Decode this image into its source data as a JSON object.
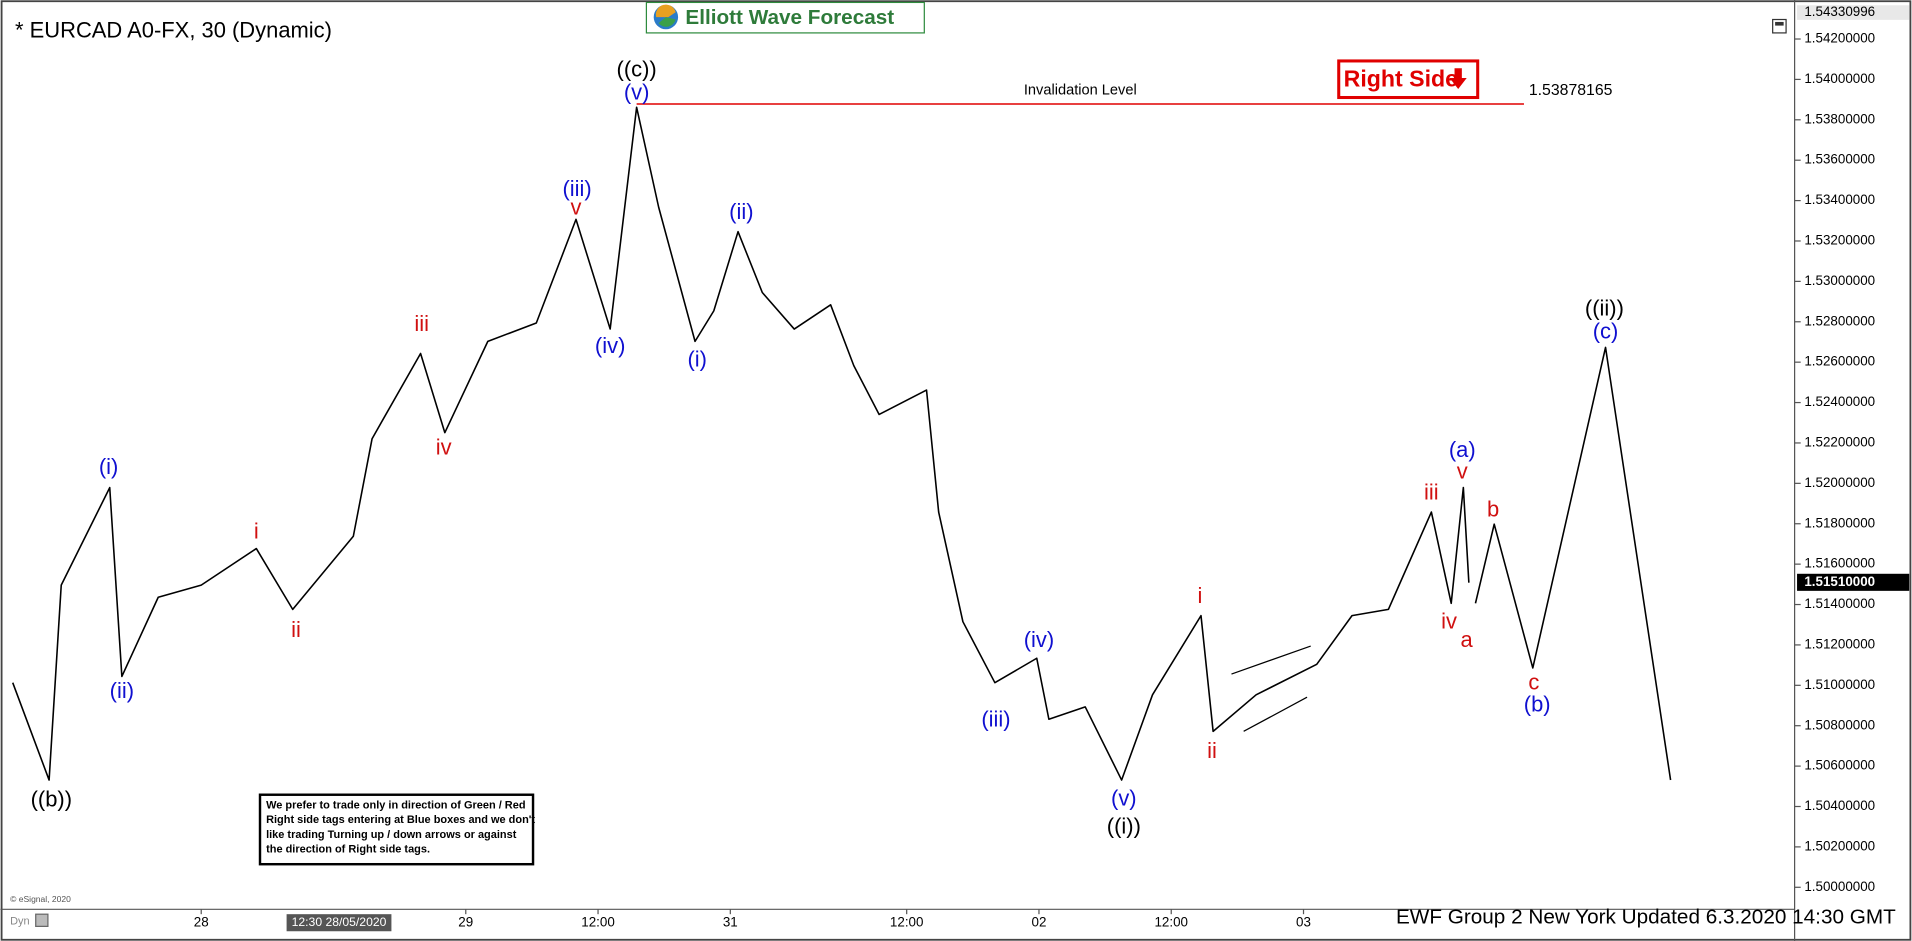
{
  "header": {
    "symbol": "* EURCAD A0-FX, 30 (Dynamic)",
    "brand": "Elliott Wave Forecast",
    "tag": "Right Side"
  },
  "note": [
    "We prefer to trade only in direction of Green / Red",
    "Right side tags entering at Blue boxes and we don't",
    "like trading Turning up / down arrows or against",
    "the direction of Right side tags."
  ],
  "footer": {
    "updated": "EWF Group 2 New York Updated 6.3.2020 14:30 GMT",
    "credit": "© eSignal, 2020",
    "mode": "Dyn"
  },
  "chart_data": {
    "type": "line",
    "xlim": [
      -18,
      144
    ],
    "ylim": [
      1.49897,
      1.54363
    ],
    "xticks": [
      {
        "value": 0,
        "label": "28"
      },
      {
        "value": 24,
        "label": "29"
      },
      {
        "value": 36,
        "label": "12:00"
      },
      {
        "value": 48,
        "label": "31"
      },
      {
        "value": 64,
        "label": "12:00"
      },
      {
        "value": 76,
        "label": "02"
      },
      {
        "value": 88,
        "label": "12:00"
      },
      {
        "value": 100,
        "label": "03"
      }
    ],
    "cursor": {
      "value": 12.5,
      "label": "12:30 28/05/2020"
    },
    "yticks": [
      {
        "value": 1.5,
        "label": "1.50000000"
      },
      {
        "value": 1.502,
        "label": "1.50200000"
      },
      {
        "value": 1.504,
        "label": "1.50400000"
      },
      {
        "value": 1.506,
        "label": "1.50600000"
      },
      {
        "value": 1.508,
        "label": "1.50800000"
      },
      {
        "value": 1.51,
        "label": "1.51000000"
      },
      {
        "value": 1.512,
        "label": "1.51200000"
      },
      {
        "value": 1.514,
        "label": "1.51400000"
      },
      {
        "value": 1.516,
        "label": "1.51600000"
      },
      {
        "value": 1.518,
        "label": "1.51800000"
      },
      {
        "value": 1.52,
        "label": "1.52000000"
      },
      {
        "value": 1.522,
        "label": "1.52200000"
      },
      {
        "value": 1.524,
        "label": "1.52400000"
      },
      {
        "value": 1.526,
        "label": "1.52600000"
      },
      {
        "value": 1.528,
        "label": "1.52800000"
      },
      {
        "value": 1.53,
        "label": "1.53000000"
      },
      {
        "value": 1.532,
        "label": "1.53200000"
      },
      {
        "value": 1.534,
        "label": "1.53400000"
      },
      {
        "value": 1.536,
        "label": "1.53600000"
      },
      {
        "value": 1.538,
        "label": "1.53800000"
      },
      {
        "value": 1.54,
        "label": "1.54000000"
      },
      {
        "value": 1.542,
        "label": "1.54200000"
      }
    ],
    "top_price": 1.54330996,
    "last_price": {
      "value": 1.5151,
      "label": "1.51510000"
    },
    "invalidation": {
      "label": "Invalidation Level",
      "value": 1.53878165,
      "x": [
        39.5,
        120
      ]
    },
    "series": [
      {
        "color": "#000000",
        "x": [
          -17.1,
          -13.8,
          -12.7,
          -8.3,
          -7.2,
          -3.9,
          0,
          5.0,
          8.3,
          13.8,
          15.5,
          19.9,
          22.1,
          26.0,
          30.4,
          34.0,
          37.1,
          39.5,
          41.5,
          44.8,
          46.5,
          48.7,
          50.9,
          53.8,
          57.1,
          59.2,
          61.5,
          65.8,
          66.9,
          69.1,
          72.0,
          75.8,
          76.9,
          80.2,
          83.5,
          86.3,
          90.7,
          91.8,
          95.7,
          101.2,
          104.4,
          107.7,
          111.6,
          113.4,
          114.5,
          115.0
        ],
        "values": [
          1.51013,
          1.50531,
          1.51496,
          1.51979,
          1.51044,
          1.51436,
          1.51496,
          1.51677,
          1.51376,
          1.51738,
          1.52221,
          1.52643,
          1.52251,
          1.52703,
          1.52794,
          1.53307,
          1.52764,
          1.53862,
          1.53367,
          1.52703,
          1.52854,
          1.53246,
          1.52945,
          1.52764,
          1.52884,
          1.52583,
          1.52341,
          1.52462,
          1.51858,
          1.51315,
          1.51013,
          1.51134,
          1.50832,
          1.50893,
          1.50531,
          1.50953,
          1.51345,
          1.50772,
          1.50953,
          1.51104,
          1.51345,
          1.51376,
          1.51858,
          1.51406,
          1.51979,
          1.51508
        ]
      },
      {
        "color": "#000000",
        "x": [
          115.6,
          117.3,
          120.8,
          127.4,
          133.3
        ],
        "values": [
          1.51406,
          1.51798,
          1.51086,
          1.52673,
          1.50531
        ]
      }
    ],
    "annotations": [
      {
        "text": "((b))",
        "x": -13.6,
        "y": 1.50428,
        "color": "#000000"
      },
      {
        "text": "(i)",
        "x": -8.4,
        "y": 1.52076,
        "color": "#1010d0"
      },
      {
        "text": "(ii)",
        "x": -7.2,
        "y": 1.50965,
        "color": "#1010d0"
      },
      {
        "text": "i",
        "x": 5.0,
        "y": 1.51756,
        "color": "#d01010"
      },
      {
        "text": "ii",
        "x": 8.6,
        "y": 1.51267,
        "color": "#d01010"
      },
      {
        "text": "iii",
        "x": 20.0,
        "y": 1.52782,
        "color": "#d01010"
      },
      {
        "text": "iv",
        "x": 22.0,
        "y": 1.52172,
        "color": "#d01010"
      },
      {
        "text": "(iii)",
        "x": 34.1,
        "y": 1.53452,
        "color": "#1010d0"
      },
      {
        "text": "v",
        "x": 34.0,
        "y": 1.53361,
        "color": "#d01010"
      },
      {
        "text": "(iv)",
        "x": 37.1,
        "y": 1.52673,
        "color": "#1010d0"
      },
      {
        "text": "((c))",
        "x": 39.5,
        "y": 1.54043,
        "color": "#000000"
      },
      {
        "text": "(v)",
        "x": 39.5,
        "y": 1.53928,
        "color": "#1010d0"
      },
      {
        "text": "(ii)",
        "x": 49.0,
        "y": 1.53337,
        "color": "#1010d0"
      },
      {
        "text": "(i)",
        "x": 45.0,
        "y": 1.52607,
        "color": "#1010d0"
      },
      {
        "text": "(iii)",
        "x": 72.1,
        "y": 1.50826,
        "color": "#1010d0"
      },
      {
        "text": "(iv)",
        "x": 76.0,
        "y": 1.51219,
        "color": "#1010d0"
      },
      {
        "text": "(v)",
        "x": 83.7,
        "y": 1.50434,
        "color": "#1010d0"
      },
      {
        "text": "((i))",
        "x": 83.7,
        "y": 1.50295,
        "color": "#000000"
      },
      {
        "text": "i",
        "x": 90.6,
        "y": 1.51436,
        "color": "#d01010"
      },
      {
        "text": "ii",
        "x": 91.7,
        "y": 1.5067,
        "color": "#d01010"
      },
      {
        "text": "iii",
        "x": 111.6,
        "y": 1.51949,
        "color": "#d01010"
      },
      {
        "text": "iv",
        "x": 113.2,
        "y": 1.51309,
        "color": "#d01010"
      },
      {
        "text": "(a)",
        "x": 114.4,
        "y": 1.5216,
        "color": "#1010d0"
      },
      {
        "text": "v",
        "x": 114.4,
        "y": 1.52052,
        "color": "#d01010"
      },
      {
        "text": "a",
        "x": 114.8,
        "y": 1.51219,
        "color": "#d01010"
      },
      {
        "text": "b",
        "x": 117.2,
        "y": 1.51864,
        "color": "#d01010"
      },
      {
        "text": "c",
        "x": 120.9,
        "y": 1.51007,
        "color": "#d01010"
      },
      {
        "text": "(b)",
        "x": 121.2,
        "y": 1.50899,
        "color": "#1010d0"
      },
      {
        "text": "((ii))",
        "x": 127.3,
        "y": 1.5286,
        "color": "#000000"
      },
      {
        "text": "(c)",
        "x": 127.4,
        "y": 1.52746,
        "color": "#1010d0"
      }
    ]
  }
}
